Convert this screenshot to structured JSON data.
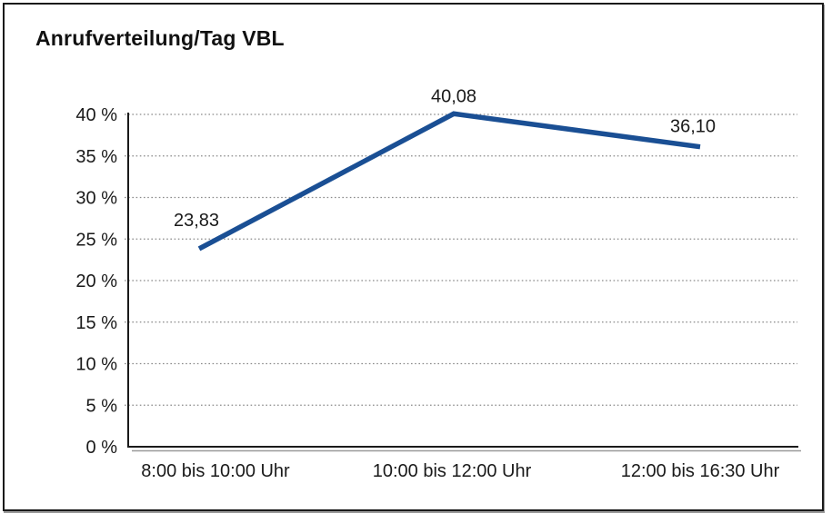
{
  "title": "Anrufverteilung/Tag VBL",
  "chart_data": {
    "type": "line",
    "title": "Anrufverteilung/Tag VBL",
    "categories": [
      "8:00 bis 10:00 Uhr",
      "10:00 bis 12:00 Uhr",
      "12:00 bis 16:30 Uhr"
    ],
    "values": [
      23.83,
      40.08,
      36.1
    ],
    "value_labels": [
      "23,83",
      "40,08",
      "36,10"
    ],
    "y_ticks": [
      0,
      5,
      10,
      15,
      20,
      25,
      30,
      35,
      40
    ],
    "y_tick_labels": [
      "0 %",
      "5 %",
      "10 %",
      "15 %",
      "20 %",
      "25 %",
      "30 %",
      "35 %",
      "40 %"
    ],
    "ylim": [
      0,
      40
    ],
    "xlabel": "",
    "ylabel": "",
    "grid": "horizontal-dotted",
    "legend": "none",
    "series_name": "Anrufverteilung"
  },
  "colors": {
    "line": "#1a4f94",
    "grid": "#8a8a8a",
    "axis": "#1a1a1a",
    "axis_shadow": "#9a9a9a",
    "text": "#1a1a1a",
    "background": "#ffffff",
    "frame_border": "#1a1a1a"
  }
}
